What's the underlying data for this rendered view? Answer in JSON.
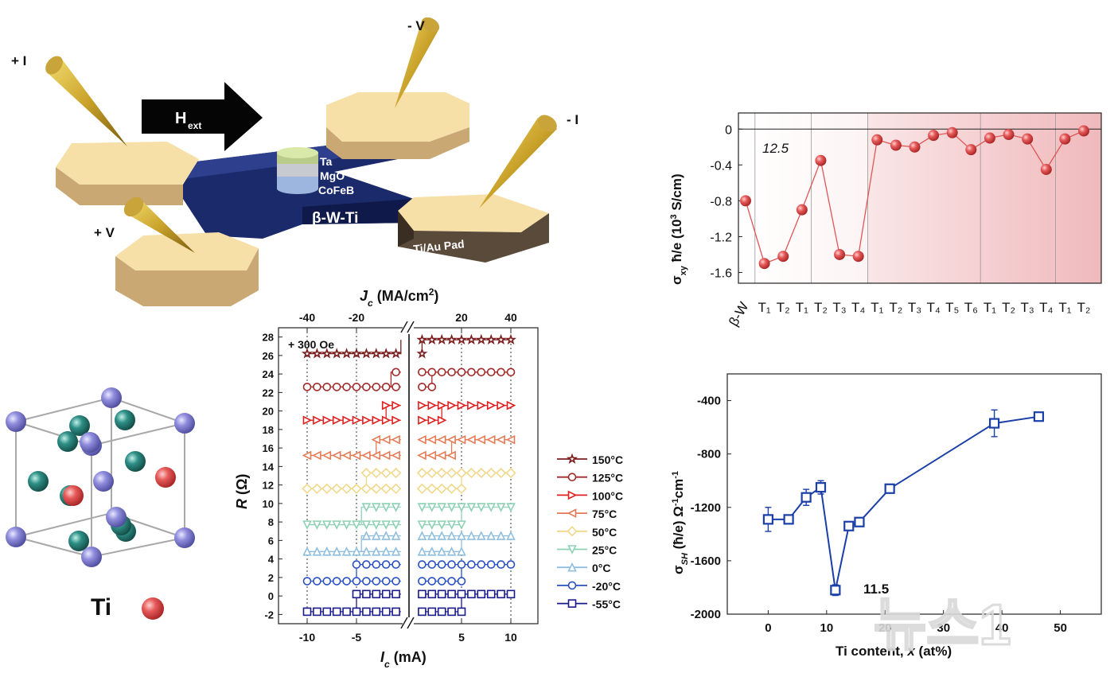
{
  "device": {
    "probes": {
      "plus_i": "+ I",
      "minus_v": "- V",
      "minus_i": "- I",
      "plus_v": "+ V"
    },
    "field_label": "H",
    "field_sub": "ext",
    "stack": [
      "Ta",
      "MgO",
      "CoFeB"
    ],
    "channel_label": "β-W-Ti",
    "pad_label": "Ti/Au Pad"
  },
  "crystal": {
    "legend_label": "Ti",
    "colors": {
      "w_atom": "#8f8ddc",
      "ti_sub": "#2e8f86",
      "ti": "#e24a4a"
    }
  },
  "watermark": "뉴스1",
  "chart_data": [
    {
      "type": "line",
      "panel": "sigma_xy",
      "ylabel": "σxy ħ/e (10³ S/cm)",
      "ylim": [
        -1.72,
        0.18
      ],
      "yticks": [
        "0",
        "-0.4",
        "-0.8",
        "-1.2",
        "-1.6"
      ],
      "ytick_values": [
        0,
        -0.4,
        -0.8,
        -1.2,
        -1.6
      ],
      "categories": [
        "β-W",
        "T₁",
        "T₂",
        "T₁",
        "T₂",
        "T₃",
        "T₄",
        "T₁",
        "T₂",
        "T₃",
        "T₄",
        "T₅",
        "T₆",
        "T₁",
        "T₂",
        "T₃",
        "T₄",
        "T₁",
        "T₂"
      ],
      "values": [
        -0.8,
        -1.5,
        -1.42,
        -0.9,
        -0.35,
        -1.4,
        -1.42,
        -0.12,
        -0.18,
        -0.2,
        -0.07,
        -0.04,
        -0.23,
        -0.1,
        -0.06,
        -0.11,
        -0.45,
        -0.11,
        -0.02
      ],
      "annotation": "12.5",
      "color": "#e05555"
    },
    {
      "type": "scatter",
      "panel": "sigma_sh",
      "xlabel": "Ti content, x (at%)",
      "ylabel": "σSH (ħ/e) Ω⁻¹cm⁻¹",
      "xlim": [
        -7,
        57
      ],
      "ylim": [
        -2000,
        -200
      ],
      "xticks": [
        "0",
        "10",
        "20",
        "30",
        "40",
        "50"
      ],
      "yticks": [
        "-400",
        "-800",
        "-1200",
        "-1600",
        "-2000"
      ],
      "x": [
        0,
        3.5,
        6.5,
        9,
        11.5,
        13.8,
        15.6,
        20.8,
        38.7,
        46.3
      ],
      "y": [
        -1290,
        -1290,
        -1125,
        -1050,
        -1820,
        -1340,
        -1310,
        -1060,
        -570,
        -520
      ],
      "err": [
        90,
        0,
        60,
        50,
        40,
        0,
        0,
        0,
        100,
        0
      ],
      "annotation": "11.5",
      "color": "#1a3fa8"
    },
    {
      "type": "line",
      "panel": "R_vs_I",
      "annotation": "+ 300 Oe",
      "xlabel": "I_c (mA)",
      "top_xlabel": "J_c (MA/cm²)",
      "ylabel": "R (Ω)",
      "ylim": [
        -3,
        29
      ],
      "yticks": [
        "-2",
        "0",
        "2",
        "4",
        "6",
        "8",
        "10",
        "12",
        "14",
        "16",
        "18",
        "20",
        "22",
        "24",
        "26",
        "28"
      ],
      "xticks_bottom": [
        "-10",
        "-5",
        "5",
        "10"
      ],
      "xticks_top": [
        "-40",
        "-20",
        "20",
        "40"
      ],
      "series": [
        {
          "name": "150°C",
          "color": "#7a1e1e",
          "low": 26.2,
          "high": 27.7,
          "marker": "star",
          "sw_neg": -0.5,
          "sw_pos": 1
        },
        {
          "name": "125°C",
          "color": "#a22a2a",
          "low": 22.6,
          "high": 24.2,
          "marker": "circle",
          "sw_neg": -1.5,
          "sw_pos": 2
        },
        {
          "name": "100°C",
          "color": "#e02020",
          "low": 19.0,
          "high": 20.6,
          "marker": "tri_right",
          "sw_neg": -2,
          "sw_pos": 3
        },
        {
          "name": "75°C",
          "color": "#e57a55",
          "low": 15.2,
          "high": 16.9,
          "marker": "tri_left",
          "sw_neg": -3,
          "sw_pos": 4
        },
        {
          "name": "50°C",
          "color": "#f0d88a",
          "low": 11.6,
          "high": 13.3,
          "marker": "diamond",
          "sw_neg": -4,
          "sw_pos": 5
        },
        {
          "name": "25°C",
          "color": "#8ed1b4",
          "low": 7.7,
          "high": 9.6,
          "marker": "tri_down",
          "sw_neg": -4.5,
          "sw_pos": 5
        },
        {
          "name": "0°C",
          "color": "#8fbede",
          "low": 4.8,
          "high": 6.5,
          "marker": "tri_up",
          "sw_neg": -4.5,
          "sw_pos": 5
        },
        {
          "name": "-20°C",
          "color": "#2a50c2",
          "low": 1.6,
          "high": 3.4,
          "marker": "circle",
          "sw_neg": -5,
          "sw_pos": 5
        },
        {
          "name": "-55°C",
          "color": "#1a1a8c",
          "low": -1.7,
          "high": 0.2,
          "marker": "square",
          "sw_neg": -5,
          "sw_pos": 5
        }
      ]
    }
  ]
}
